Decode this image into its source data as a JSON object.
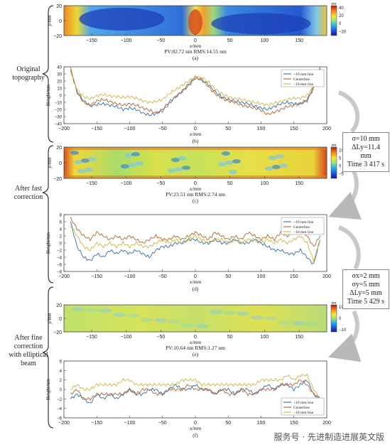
{
  "stages": [
    {
      "label_lines": [
        "Original",
        "topography"
      ]
    },
    {
      "label_lines": [
        "After fast",
        "correction"
      ]
    },
    {
      "label_lines": [
        "After fine",
        "correction",
        "with elliptical",
        "beam"
      ]
    }
  ],
  "param_boxes": [
    {
      "lines": [
        "σ=10 mm",
        "ΔLy=11.4 mm",
        "Time 3 417 s"
      ]
    },
    {
      "lines": [
        "σx=2 mm",
        "σy=5 mm",
        "ΔLy=5 mm",
        "Time 5 429 s"
      ]
    }
  ],
  "watermark": "服务号 · 先进制造进展英文版",
  "colors": {
    "line_10": "#2f6db3",
    "line_center": "#c0622a",
    "line_m10": "#d9b33b"
  },
  "chart_data": [
    {
      "id": "a",
      "type": "heatmap",
      "caption": "(a)",
      "stats": "PV:82.72 nm  RMS:14.55 nm",
      "xlabel": "x/mm",
      "ylabel": "y/mm",
      "xlim": [
        -190,
        190
      ],
      "ylim": [
        -20,
        20
      ],
      "xticks": [
        "−150",
        "−100",
        "−50",
        "0",
        "50",
        "100",
        "150"
      ],
      "yticks": [
        "20",
        "0",
        "−20"
      ],
      "colorbar": {
        "unit": "nm",
        "ticks": [
          "40",
          "20",
          "0",
          "−20"
        ],
        "range": [
          -30,
          45
        ]
      }
    },
    {
      "id": "b",
      "type": "line",
      "caption": "(b)",
      "xlabel": "x/mm",
      "ylabel": "Height/nm",
      "xlim": [
        -200,
        200
      ],
      "ylim": [
        -40,
        40
      ],
      "xticks": [
        "−200",
        "−150",
        "−100",
        "−50",
        "0",
        "50",
        "100",
        "150",
        "200"
      ],
      "yticks": [
        "40",
        "30",
        "20",
        "10",
        "0",
        "−10",
        "−20",
        "−30",
        "−40"
      ],
      "legend": [
        "+10 mm line",
        "Centerline",
        "−10 mm line"
      ],
      "x": [
        -190,
        -180,
        -170,
        -160,
        -150,
        -140,
        -130,
        -120,
        -110,
        -100,
        -90,
        -80,
        -70,
        -60,
        -50,
        -40,
        -30,
        -20,
        -10,
        0,
        10,
        20,
        30,
        40,
        50,
        60,
        70,
        80,
        90,
        100,
        110,
        120,
        130,
        140,
        150,
        160,
        170,
        180,
        190
      ],
      "series": [
        {
          "name": "+10 mm line",
          "values": [
            36,
            5,
            -8,
            -15,
            -13,
            -12,
            -14,
            -16,
            -20,
            -18,
            -20,
            -25,
            -28,
            -26,
            -20,
            -10,
            -2,
            5,
            14,
            24,
            22,
            15,
            5,
            -2,
            -6,
            -8,
            -10,
            -12,
            -15,
            -18,
            -20,
            -16,
            -12,
            -10,
            -12,
            -12,
            -8,
            10,
            38
          ]
        },
        {
          "name": "Centerline",
          "values": [
            38,
            4,
            -10,
            -14,
            -8,
            -6,
            -9,
            -12,
            -14,
            -12,
            -14,
            -18,
            -21,
            -25,
            -22,
            -12,
            -2,
            6,
            16,
            26,
            21,
            12,
            2,
            -4,
            -8,
            -10,
            -14,
            -16,
            -18,
            -21,
            -27,
            -24,
            -20,
            -16,
            -14,
            -12,
            -6,
            12,
            40
          ]
        },
        {
          "name": "−10 mm line",
          "values": [
            34,
            8,
            -2,
            -5,
            -1,
            1,
            -1,
            -2,
            -3,
            -2,
            -4,
            -8,
            -10,
            -9,
            -6,
            2,
            8,
            14,
            20,
            26,
            25,
            18,
            9,
            2,
            -2,
            -5,
            -6,
            -8,
            -10,
            -12,
            -14,
            -11,
            -9,
            -6,
            -4,
            -4,
            0,
            12,
            36
          ]
        }
      ]
    },
    {
      "id": "c",
      "type": "heatmap",
      "caption": "(c)",
      "stats": "PV:23.51 nm  RMS:2.74 nm",
      "xlabel": "x/mm",
      "ylabel": "y/mm",
      "xlim": [
        -190,
        190
      ],
      "ylim": [
        -20,
        20
      ],
      "xticks": [
        "−150",
        "−100",
        "−50",
        "0",
        "50",
        "100",
        "150"
      ],
      "yticks": [
        "20",
        "0",
        "−20"
      ],
      "colorbar": {
        "unit": "nm",
        "ticks": [
          "10",
          "5",
          "0",
          "−5"
        ],
        "range": [
          -8,
          12
        ]
      }
    },
    {
      "id": "d",
      "type": "line",
      "caption": "(d)",
      "xlabel": "x/mm",
      "ylabel": "Height/nm",
      "xlim": [
        -200,
        200
      ],
      "ylim": [
        -8,
        8
      ],
      "xticks": [
        "−200",
        "−150",
        "−100",
        "−50",
        "0",
        "50",
        "100",
        "150",
        "200"
      ],
      "yticks": [
        "8",
        "6",
        "4",
        "2",
        "0",
        "−2",
        "−4",
        "−6",
        "−8"
      ],
      "legend": [
        "+10 mm line",
        "Centerline",
        "−10 mm line"
      ],
      "x": [
        -190,
        -180,
        -170,
        -160,
        -150,
        -140,
        -130,
        -120,
        -110,
        -100,
        -90,
        -80,
        -70,
        -60,
        -50,
        -40,
        -30,
        -20,
        -10,
        0,
        10,
        20,
        30,
        40,
        50,
        60,
        70,
        80,
        90,
        100,
        110,
        120,
        130,
        140,
        150,
        160,
        170,
        180,
        190
      ],
      "series": [
        {
          "name": "+10 mm line",
          "values": [
            6,
            -1,
            -4,
            -5,
            -3,
            -4,
            -2,
            -3,
            -2,
            -3,
            -2,
            -3,
            -4,
            -2,
            -1,
            -1,
            0,
            0,
            1,
            1,
            0,
            0,
            1,
            0,
            0,
            1,
            0,
            0,
            1,
            0,
            -1,
            -2,
            -2,
            -3,
            -3,
            -2,
            -4,
            -6,
            1
          ]
        },
        {
          "name": "Centerline",
          "values": [
            7,
            4,
            2,
            1,
            3,
            2,
            1,
            2,
            1,
            2,
            1,
            0,
            1,
            2,
            1,
            1,
            2,
            1,
            2,
            3,
            2,
            1,
            3,
            2,
            1,
            2,
            1,
            3,
            2,
            1,
            2,
            1,
            3,
            2,
            3,
            4,
            2,
            -1,
            2
          ]
        },
        {
          "name": "−10 mm line",
          "values": [
            5,
            2,
            -1,
            -2,
            0,
            -1,
            0,
            -1,
            0,
            -1,
            0,
            -1,
            -1,
            0,
            1,
            0,
            1,
            0,
            1,
            2,
            1,
            0,
            1,
            1,
            0,
            1,
            0,
            1,
            1,
            0,
            1,
            0,
            1,
            0,
            1,
            2,
            0,
            -5,
            1
          ]
        }
      ]
    },
    {
      "id": "e",
      "type": "heatmap",
      "caption": "(e)",
      "stats": "PV:10.64 nm  RMS:1.27 nm",
      "xlabel": "x/mm",
      "ylabel": "y/mm",
      "xlim": [
        -190,
        190
      ],
      "ylim": [
        -20,
        20
      ],
      "xticks": [
        "−150",
        "−100",
        "−50",
        "0",
        "50",
        "100",
        "150"
      ],
      "yticks": [
        "20",
        "0",
        "−20"
      ],
      "colorbar": {
        "unit": "nm",
        "ticks": [
          "10",
          "0",
          "−10"
        ],
        "range": [
          -12,
          12
        ]
      }
    },
    {
      "id": "f",
      "type": "line",
      "caption": "(f)",
      "xlabel": "x/mm",
      "ylabel": "Height/nm",
      "xlim": [
        -200,
        200
      ],
      "ylim": [
        -6,
        6
      ],
      "xticks": [
        "−200",
        "−150",
        "−100",
        "−50",
        "0",
        "50",
        "100",
        "150",
        "200"
      ],
      "yticks": [
        "6",
        "4",
        "2",
        "0",
        "−2",
        "−4",
        "−6"
      ],
      "legend": [
        "+10 mm line",
        "Centerline",
        "−10 mm line"
      ],
      "x": [
        -190,
        -180,
        -170,
        -160,
        -150,
        -140,
        -130,
        -120,
        -110,
        -100,
        -90,
        -80,
        -70,
        -60,
        -50,
        -40,
        -30,
        -20,
        -10,
        0,
        10,
        20,
        30,
        40,
        50,
        60,
        70,
        80,
        90,
        100,
        110,
        120,
        130,
        140,
        150,
        160,
        170,
        180,
        190
      ],
      "series": [
        {
          "name": "+10 mm line",
          "values": [
            -2,
            -1,
            -2,
            -3,
            -1,
            -2,
            -1,
            -2,
            -1,
            0,
            -1,
            -1,
            0,
            0,
            -1,
            0,
            1,
            0,
            0,
            1,
            0,
            0,
            -1,
            0,
            0,
            -1,
            0,
            0,
            -1,
            0,
            1,
            0,
            1,
            1,
            0,
            1,
            2,
            -1,
            -2
          ]
        },
        {
          "name": "Centerline",
          "values": [
            -1,
            0,
            -2,
            -2,
            -1,
            -1,
            -1,
            -1,
            -1,
            0,
            -1,
            0,
            0,
            -1,
            -1,
            0,
            0,
            0,
            1,
            0,
            0,
            0,
            -1,
            0,
            -1,
            -1,
            0,
            -1,
            -1,
            0,
            0,
            0,
            1,
            1,
            1,
            2,
            1,
            -1,
            -2
          ]
        },
        {
          "name": "−10 mm line",
          "values": [
            0,
            1,
            0,
            0,
            1,
            1,
            1,
            1,
            2,
            2,
            1,
            1,
            1,
            1,
            1,
            1,
            1,
            2,
            2,
            2,
            1,
            1,
            1,
            1,
            1,
            1,
            1,
            1,
            1,
            2,
            2,
            2,
            2,
            3,
            2,
            3,
            3,
            0,
            -2
          ]
        }
      ]
    }
  ]
}
